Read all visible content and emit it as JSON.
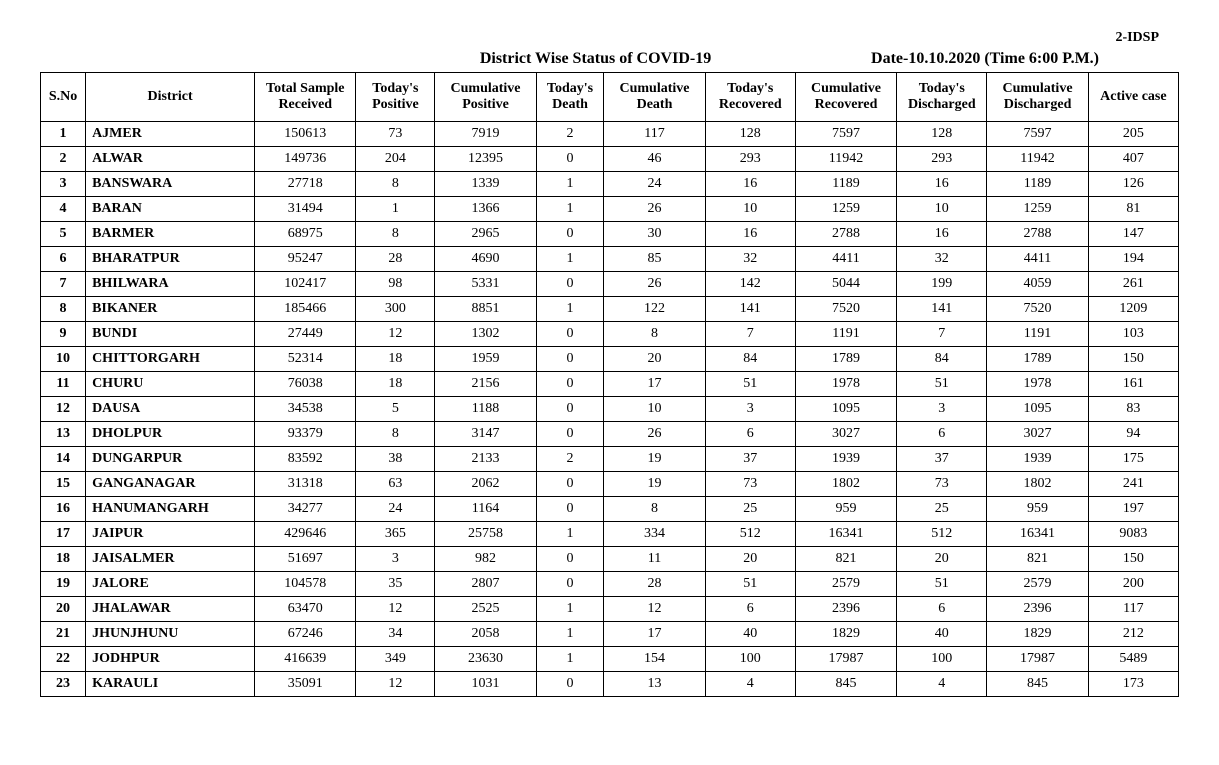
{
  "topRight": "2-IDSP",
  "title": "District Wise Status of COVID-19",
  "dateLine": "Date-10.10.2020 (Time 6:00 P.M.)",
  "columns": [
    "S.No",
    "District",
    "Total Sample Received",
    "Today's Positive",
    "Cumulative Positive",
    "Today's Death",
    "Cumulative Death",
    "Today's Recovered",
    "Cumulative Recovered",
    "Today's Discharged",
    "Cumulative Discharged",
    "Active case"
  ],
  "rows": [
    [
      "1",
      "AJMER",
      "150613",
      "73",
      "7919",
      "2",
      "117",
      "128",
      "7597",
      "128",
      "7597",
      "205"
    ],
    [
      "2",
      "ALWAR",
      "149736",
      "204",
      "12395",
      "0",
      "46",
      "293",
      "11942",
      "293",
      "11942",
      "407"
    ],
    [
      "3",
      "BANSWARA",
      "27718",
      "8",
      "1339",
      "1",
      "24",
      "16",
      "1189",
      "16",
      "1189",
      "126"
    ],
    [
      "4",
      "BARAN",
      "31494",
      "1",
      "1366",
      "1",
      "26",
      "10",
      "1259",
      "10",
      "1259",
      "81"
    ],
    [
      "5",
      "BARMER",
      "68975",
      "8",
      "2965",
      "0",
      "30",
      "16",
      "2788",
      "16",
      "2788",
      "147"
    ],
    [
      "6",
      "BHARATPUR",
      "95247",
      "28",
      "4690",
      "1",
      "85",
      "32",
      "4411",
      "32",
      "4411",
      "194"
    ],
    [
      "7",
      "BHILWARA",
      "102417",
      "98",
      "5331",
      "0",
      "26",
      "142",
      "5044",
      "199",
      "4059",
      "261"
    ],
    [
      "8",
      "BIKANER",
      "185466",
      "300",
      "8851",
      "1",
      "122",
      "141",
      "7520",
      "141",
      "7520",
      "1209"
    ],
    [
      "9",
      "BUNDI",
      "27449",
      "12",
      "1302",
      "0",
      "8",
      "7",
      "1191",
      "7",
      "1191",
      "103"
    ],
    [
      "10",
      "CHITTORGARH",
      "52314",
      "18",
      "1959",
      "0",
      "20",
      "84",
      "1789",
      "84",
      "1789",
      "150"
    ],
    [
      "11",
      "CHURU",
      "76038",
      "18",
      "2156",
      "0",
      "17",
      "51",
      "1978",
      "51",
      "1978",
      "161"
    ],
    [
      "12",
      "DAUSA",
      "34538",
      "5",
      "1188",
      "0",
      "10",
      "3",
      "1095",
      "3",
      "1095",
      "83"
    ],
    [
      "13",
      "DHOLPUR",
      "93379",
      "8",
      "3147",
      "0",
      "26",
      "6",
      "3027",
      "6",
      "3027",
      "94"
    ],
    [
      "14",
      "DUNGARPUR",
      "83592",
      "38",
      "2133",
      "2",
      "19",
      "37",
      "1939",
      "37",
      "1939",
      "175"
    ],
    [
      "15",
      "GANGANAGAR",
      "31318",
      "63",
      "2062",
      "0",
      "19",
      "73",
      "1802",
      "73",
      "1802",
      "241"
    ],
    [
      "16",
      "HANUMANGARH",
      "34277",
      "24",
      "1164",
      "0",
      "8",
      "25",
      "959",
      "25",
      "959",
      "197"
    ],
    [
      "17",
      "JAIPUR",
      "429646",
      "365",
      "25758",
      "1",
      "334",
      "512",
      "16341",
      "512",
      "16341",
      "9083"
    ],
    [
      "18",
      "JAISALMER",
      "51697",
      "3",
      "982",
      "0",
      "11",
      "20",
      "821",
      "20",
      "821",
      "150"
    ],
    [
      "19",
      "JALORE",
      "104578",
      "35",
      "2807",
      "0",
      "28",
      "51",
      "2579",
      "51",
      "2579",
      "200"
    ],
    [
      "20",
      "JHALAWAR",
      "63470",
      "12",
      "2525",
      "1",
      "12",
      "6",
      "2396",
      "6",
      "2396",
      "117"
    ],
    [
      "21",
      "JHUNJHUNU",
      "67246",
      "34",
      "2058",
      "1",
      "17",
      "40",
      "1829",
      "40",
      "1829",
      "212"
    ],
    [
      "22",
      "JODHPUR",
      "416639",
      "349",
      "23630",
      "1",
      "154",
      "100",
      "17987",
      "100",
      "17987",
      "5489"
    ],
    [
      "23",
      "KARAULI",
      "35091",
      "12",
      "1031",
      "0",
      "13",
      "4",
      "845",
      "4",
      "845",
      "173"
    ]
  ]
}
